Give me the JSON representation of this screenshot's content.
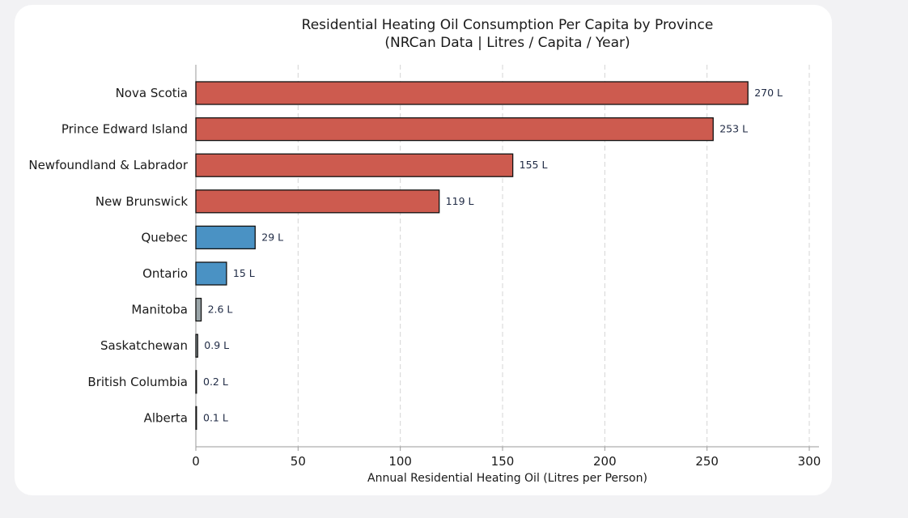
{
  "chart_data": {
    "type": "bar",
    "orientation": "horizontal",
    "title": "Residential Heating Oil Consumption Per Capita by Province",
    "subtitle": "(NRCan Data | Litres / Capita / Year)",
    "xlabel": "Annual Residential Heating Oil (Litres per Person)",
    "ylabel": "",
    "xlim": [
      0,
      300
    ],
    "xticks": [
      0,
      50,
      100,
      150,
      200,
      250,
      300
    ],
    "grid": "x-dashed",
    "categories": [
      "Nova Scotia",
      "Prince Edward Island",
      "Newfoundland & Labrador",
      "New Brunswick",
      "Quebec",
      "Ontario",
      "Manitoba",
      "Saskatchewan",
      "British Columbia",
      "Alberta"
    ],
    "values": [
      270,
      253,
      155,
      119,
      29,
      15,
      2.6,
      0.9,
      0.2,
      0.1
    ],
    "value_labels": [
      "270 L",
      "253 L",
      "155 L",
      "119 L",
      "29 L",
      "15 L",
      "2.6 L",
      "0.9 L",
      "0.2 L",
      "0.1 L"
    ],
    "bar_colors": [
      "#cd5b4f",
      "#cd5b4f",
      "#cd5b4f",
      "#cd5b4f",
      "#4a92c4",
      "#4a92c4",
      "#9aa5a8",
      "#9aa5a8",
      "#9aa5a8",
      "#9aa5a8"
    ]
  }
}
